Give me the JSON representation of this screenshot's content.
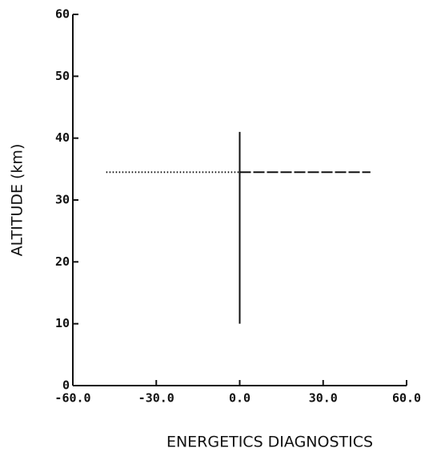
{
  "chart_data": {
    "type": "line",
    "x_label": "ENERGETICS DIAGNOSTICS",
    "y_label": "ALTITUDE (km)",
    "xlim": [
      -60,
      60
    ],
    "xticks": [
      {
        "value": -60,
        "label": "-60.0"
      },
      {
        "value": -30,
        "label": "-30.0"
      },
      {
        "value": 0,
        "label": "0.0"
      },
      {
        "value": 30,
        "label": "30.0"
      },
      {
        "value": 60,
        "label": "60.0"
      }
    ],
    "ylim": [
      0,
      60
    ],
    "yticks": [
      0,
      10,
      20,
      30,
      40,
      50,
      60
    ],
    "series": [
      {
        "color": "#111111",
        "style": "dotted",
        "x": [
          -48,
          0
        ],
        "values": [
          34.5,
          34.5
        ]
      },
      {
        "color": "#111111",
        "style": "dashed",
        "x": [
          0,
          47
        ],
        "values": [
          34.5,
          34.5
        ]
      },
      {
        "color": "#111111",
        "style": "solid",
        "x": [
          0,
          0
        ],
        "values": [
          10,
          41
        ]
      }
    ]
  }
}
